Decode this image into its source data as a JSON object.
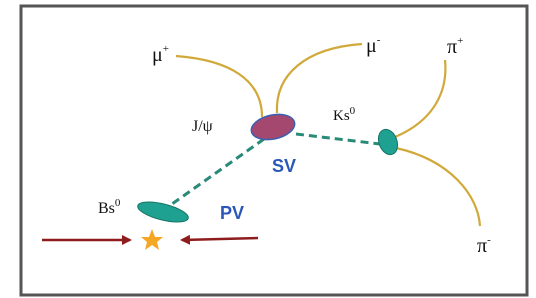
{
  "labels": {
    "mu_plus": {
      "base": "μ",
      "sup": "+"
    },
    "mu_minus": {
      "base": "μ",
      "sup": "-"
    },
    "pi_plus": {
      "base": "π",
      "sup": "+"
    },
    "pi_minus": {
      "base": "π",
      "sup": "-"
    },
    "jpsi": "J/ψ",
    "ks": {
      "base": "Ks",
      "sup": "0"
    },
    "bs": {
      "base": "Bs",
      "sup": "0"
    },
    "sv": "SV",
    "pv": "PV"
  }
}
